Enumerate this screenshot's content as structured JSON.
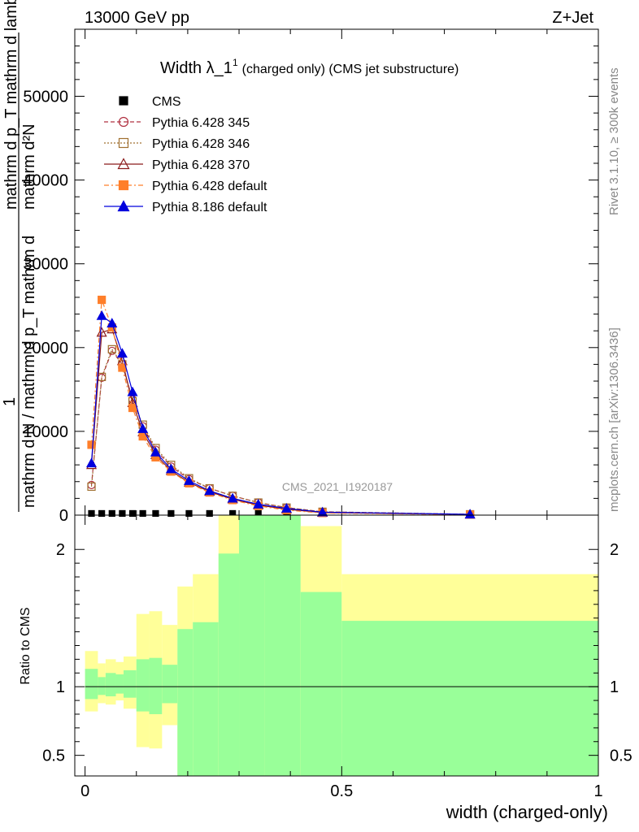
{
  "header": {
    "energy": "13000 GeV pp",
    "process": "Z+Jet",
    "rivet": "Rivet 3.1.10, ≥ 300k events",
    "site": "mcplots.cern.ch [arXiv:1306.3436]",
    "watermark": "CMS_2021_I1920187"
  },
  "chart_data": [
    {
      "type": "line",
      "title_main": "Width λ_1",
      "title_sup": "1",
      "title_rest": "(charged only) (CMS jet substructure)",
      "ylabel_top": "mathrm d²N",
      "ylabel_top2": "mathrm d p_T mathrm d lambda",
      "ylabel_one": "1",
      "ylabel_bottom": "mathrm d N / mathrm d p_T mathrm d",
      "ylabel_bottom2": "mathrm d N / mathrm d p_T",
      "xlim": [
        -0.02,
        1.0
      ],
      "ylim": [
        0,
        58000
      ],
      "yticks": [
        0,
        10000,
        20000,
        30000,
        40000,
        50000
      ],
      "ytick_labels": [
        "0",
        "10000",
        "20000",
        "30000",
        "40000",
        "50000"
      ],
      "legend": [
        {
          "name": "CMS",
          "color": "#000000",
          "marker": "square-filled",
          "dash": ""
        },
        {
          "name": "Pythia 6.428 345",
          "color": "#b03040",
          "marker": "circle-open",
          "dash": "5,3"
        },
        {
          "name": "Pythia 6.428 346",
          "color": "#a07030",
          "marker": "square-open",
          "dash": "2,2"
        },
        {
          "name": "Pythia 6.428 370",
          "color": "#8b1a1a",
          "marker": "triangle-open",
          "dash": ""
        },
        {
          "name": "Pythia 6.428 default",
          "color": "#ff7f2a",
          "marker": "square-filled",
          "dash": "6,3,2,3"
        },
        {
          "name": "Pythia 8.186 default",
          "color": "#0000dd",
          "marker": "triangle-filled",
          "dash": ""
        }
      ],
      "x": [
        0.0125,
        0.0325,
        0.0525,
        0.0725,
        0.0925,
        0.1125,
        0.1375,
        0.1675,
        0.2025,
        0.2425,
        0.2875,
        0.3375,
        0.3925,
        0.4625,
        0.75
      ],
      "series": [
        {
          "name": "CMS",
          "values": [
            200,
            200,
            200,
            200,
            200,
            200,
            200,
            200,
            200,
            200,
            200,
            200,
            200,
            200,
            100
          ]
        },
        {
          "name": "Pythia 6.428 345",
          "values": [
            3600,
            16400,
            19600,
            18000,
            13800,
            10600,
            7800,
            5800,
            4300,
            3200,
            2300,
            1500,
            900,
            400,
            100
          ]
        },
        {
          "name": "Pythia 6.428 346",
          "values": [
            3400,
            16500,
            19800,
            18000,
            13600,
            10800,
            8000,
            6000,
            4400,
            3200,
            2300,
            1500,
            900,
            400,
            100
          ]
        },
        {
          "name": "Pythia 6.428 370",
          "values": [
            6000,
            21800,
            22200,
            18400,
            13400,
            9900,
            7200,
            5300,
            3900,
            2800,
            1900,
            1200,
            700,
            300,
            80
          ]
        },
        {
          "name": "Pythia 6.428 default",
          "values": [
            8400,
            25700,
            22400,
            17600,
            12800,
            9400,
            6900,
            5200,
            3800,
            2700,
            1800,
            1100,
            600,
            250,
            60
          ]
        },
        {
          "name": "Pythia 8.186 default",
          "values": [
            6200,
            23800,
            22900,
            19300,
            14700,
            10300,
            7500,
            5500,
            4100,
            2900,
            2000,
            1300,
            800,
            350,
            100
          ]
        }
      ]
    },
    {
      "type": "area",
      "ylabel": "Ratio to CMS",
      "xlabel": "width (charged-only)",
      "xlim": [
        -0.02,
        1.0
      ],
      "ylim": [
        0.35,
        2.25
      ],
      "yticks": [
        0.5,
        1,
        2
      ],
      "ytick_labels": [
        "0.5",
        "1",
        "2"
      ],
      "xticks": [
        0,
        0.5,
        1
      ],
      "xtick_labels": [
        "0",
        "0.5",
        "1"
      ],
      "band_colors": {
        "outer": "#ffff99",
        "inner": "#99ff99",
        "line": "#000000"
      },
      "bins": [
        {
          "x0": 0.0,
          "x1": 0.025,
          "y_lo": 0.82,
          "y_hi": 1.26,
          "g_lo": 0.91,
          "g_hi": 1.13
        },
        {
          "x0": 0.025,
          "x1": 0.04,
          "y_lo": 0.88,
          "y_hi": 1.17,
          "g_lo": 0.94,
          "g_hi": 1.07
        },
        {
          "x0": 0.04,
          "x1": 0.06,
          "y_lo": 0.87,
          "y_hi": 1.2,
          "g_lo": 0.93,
          "g_hi": 1.1
        },
        {
          "x0": 0.06,
          "x1": 0.075,
          "y_lo": 0.9,
          "y_hi": 1.18,
          "g_lo": 0.95,
          "g_hi": 1.09
        },
        {
          "x0": 0.075,
          "x1": 0.1,
          "y_lo": 0.84,
          "y_hi": 1.22,
          "g_lo": 0.92,
          "g_hi": 1.12
        },
        {
          "x0": 0.1,
          "x1": 0.125,
          "y_lo": 0.56,
          "y_hi": 1.53,
          "g_lo": 0.82,
          "g_hi": 1.2
        },
        {
          "x0": 0.125,
          "x1": 0.15,
          "y_lo": 0.55,
          "y_hi": 1.55,
          "g_lo": 0.8,
          "g_hi": 1.21
        },
        {
          "x0": 0.15,
          "x1": 0.18,
          "y_lo": 0.72,
          "y_hi": 1.45,
          "g_lo": 0.88,
          "g_hi": 1.16
        },
        {
          "x0": 0.18,
          "x1": 0.21,
          "y_lo": 0.35,
          "y_hi": 1.73,
          "g_lo": 0.35,
          "g_hi": 1.42
        },
        {
          "x0": 0.21,
          "x1": 0.26,
          "y_lo": 0.35,
          "y_hi": 1.82,
          "g_lo": 0.35,
          "g_hi": 1.47
        },
        {
          "x0": 0.26,
          "x1": 0.3,
          "y_lo": 0.35,
          "y_hi": 2.25,
          "g_lo": 0.35,
          "g_hi": 1.97
        },
        {
          "x0": 0.3,
          "x1": 0.35,
          "y_lo": 0.35,
          "y_hi": 2.25,
          "g_lo": 0.35,
          "g_hi": 2.25
        },
        {
          "x0": 0.35,
          "x1": 0.42,
          "y_lo": 0.35,
          "y_hi": 2.25,
          "g_lo": 0.35,
          "g_hi": 2.25
        },
        {
          "x0": 0.42,
          "x1": 0.5,
          "y_lo": 0.35,
          "y_hi": 2.17,
          "g_lo": 0.35,
          "g_hi": 1.69
        },
        {
          "x0": 0.5,
          "x1": 1.0,
          "y_lo": 0.66,
          "y_hi": 1.82,
          "g_lo": 0.35,
          "g_hi": 1.48
        }
      ]
    }
  ]
}
